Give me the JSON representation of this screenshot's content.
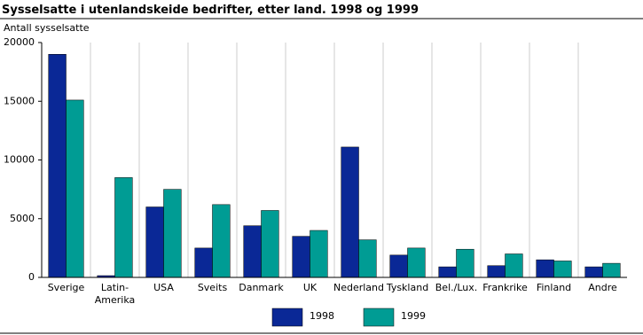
{
  "chart_data": {
    "type": "bar",
    "title": "Sysselsatte i utenlandskeide bedrifter, etter land. 1998 og 1999",
    "y_label": "Antall sysselsatte",
    "categories": [
      "Sverige",
      "Latin-Amerika",
      "USA",
      "Sveits",
      "Danmark",
      "UK",
      "Nederland",
      "Tyskland",
      "Bel./Lux.",
      "Frankrike",
      "Finland",
      "Andre"
    ],
    "series": [
      {
        "name": "1998",
        "color": "#0a2896",
        "values": [
          19000,
          150,
          6000,
          2500,
          4400,
          3500,
          11100,
          1900,
          900,
          1000,
          1500,
          900
        ]
      },
      {
        "name": "1999",
        "color": "#009c94",
        "values": [
          15100,
          8500,
          7500,
          6200,
          5700,
          4000,
          3200,
          2500,
          2400,
          2000,
          1400,
          1200
        ]
      }
    ],
    "ylim": [
      0,
      20000
    ],
    "yticks": [
      0,
      5000,
      10000,
      15000,
      20000
    ]
  }
}
